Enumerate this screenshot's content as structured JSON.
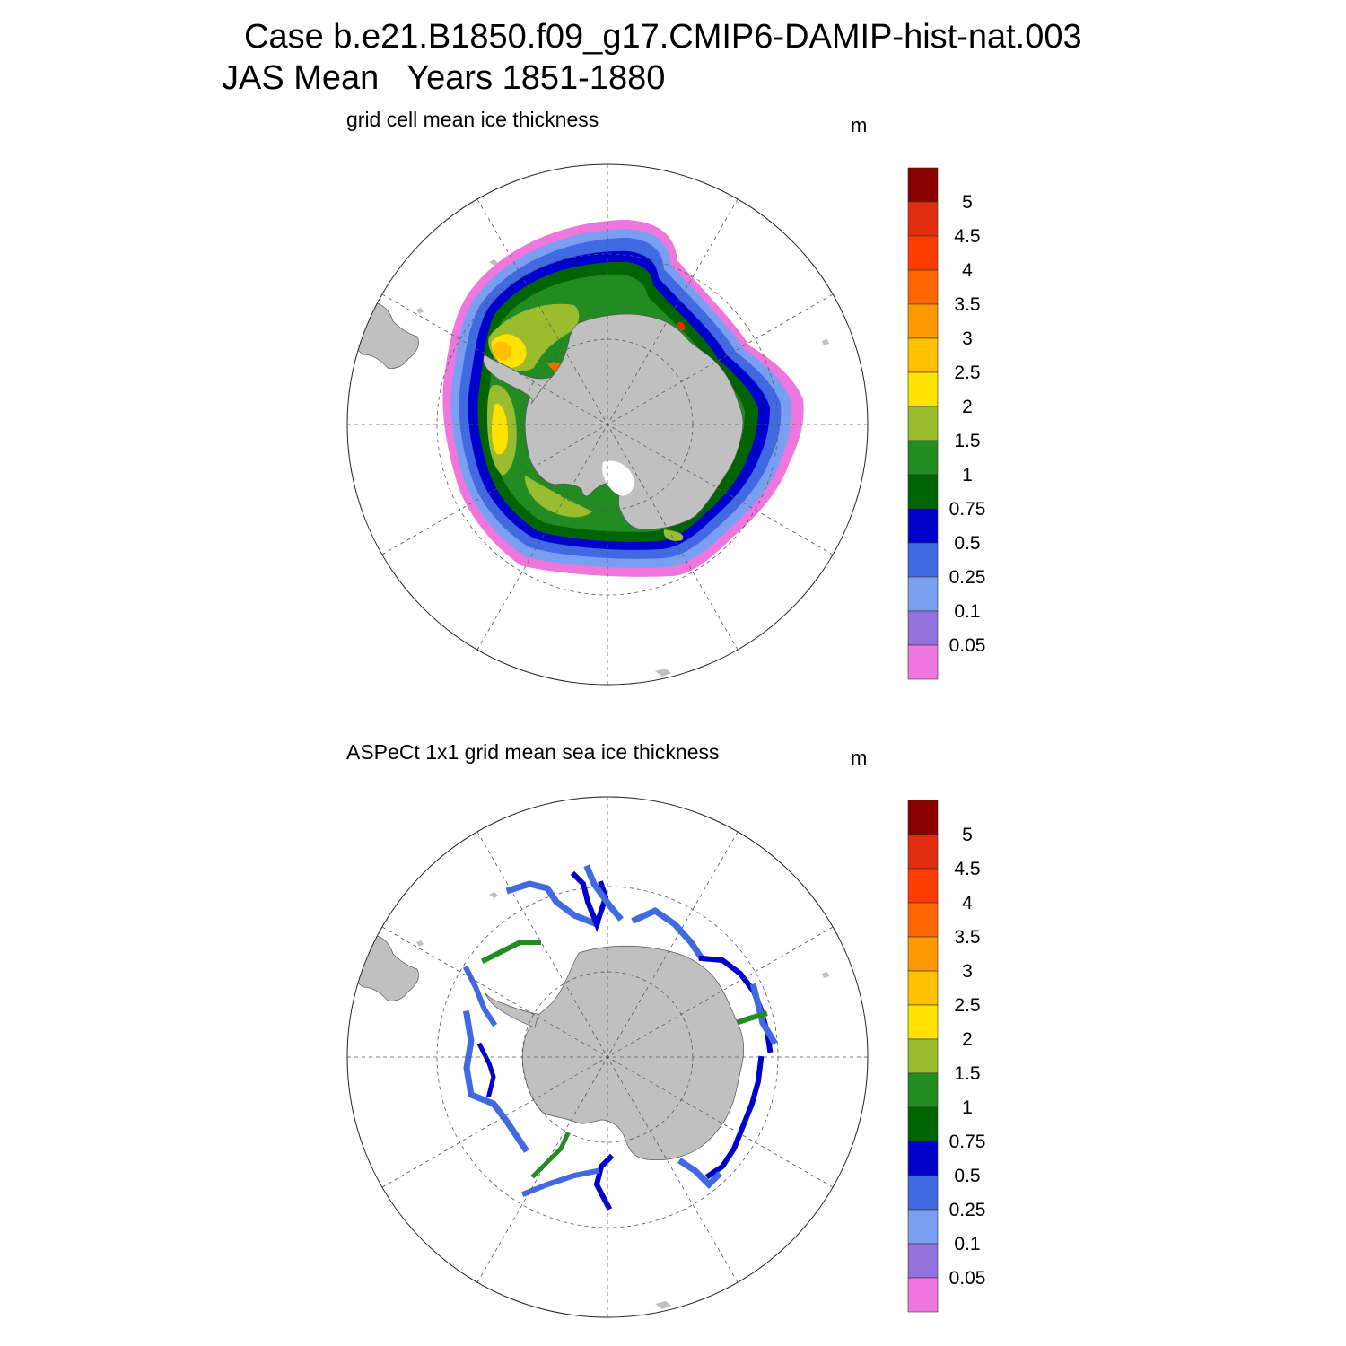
{
  "header": {
    "case_title": "Case b.e21.B1850.f09_g17.CMIP6-DAMIP-hist-nat.003",
    "period_title": "JAS Mean   Years 1851-1880"
  },
  "panels": [
    {
      "id": "model",
      "title": "grid cell mean ice thickness",
      "units": "m"
    },
    {
      "id": "obs",
      "title": "ASPeCt 1x1 grid mean sea ice thickness",
      "units": "m"
    }
  ],
  "colorbar": {
    "labels": [
      "5",
      "4.5",
      "4",
      "3.5",
      "3",
      "2.5",
      "2",
      "1.5",
      "1",
      "0.75",
      "0.5",
      "0.25",
      "0.1",
      "0.05"
    ],
    "colors_top_to_bottom": [
      "#8b0000",
      "#e02d10",
      "#ff3c00",
      "#ff6600",
      "#ff9900",
      "#ffc000",
      "#ffe200",
      "#9abd30",
      "#228b22",
      "#006400",
      "#0000cd",
      "#4169e1",
      "#7b9ff0",
      "#9370db",
      "#ee76dd"
    ]
  },
  "colors": {
    "land": "#c0c0c0",
    "grid": "#555555",
    "background": "#ffffff"
  }
}
